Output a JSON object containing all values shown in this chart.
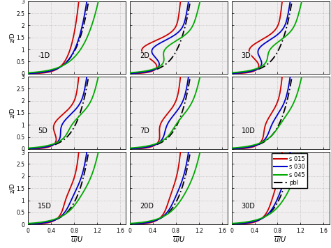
{
  "panels": [
    "-1D",
    "2D",
    "3D",
    "5D",
    "7D",
    "10D",
    "15D",
    "20D",
    "30D"
  ],
  "xlim": [
    0,
    1.7
  ],
  "ylim": [
    0,
    3.0
  ],
  "xticks": [
    0,
    0.4,
    0.8,
    1.2,
    1.6
  ],
  "yticks": [
    0,
    0.5,
    1.0,
    1.5,
    2.0,
    2.5,
    3.0
  ],
  "xlabel": "$\\overline{u}/U$",
  "ylabel": "z/D",
  "legend_labels": [
    "s 015",
    "s 030",
    "s 045",
    "pbl"
  ],
  "colors": [
    "#cc0000",
    "#0000cc",
    "#00aa00",
    "#000000"
  ],
  "bg_color": "#f0eeee",
  "grid_color": "#888888"
}
